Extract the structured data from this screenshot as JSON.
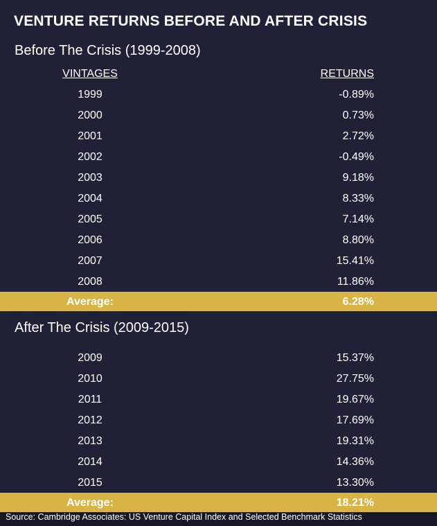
{
  "title": "VENTURE RETURNS BEFORE AND AFTER CRISIS",
  "sections": [
    {
      "heading": "Before The Crisis (1999-2008)",
      "columns": [
        "VINTAGES",
        "RETURNS"
      ],
      "rows": [
        [
          "1999",
          "-0.89%"
        ],
        [
          "2000",
          "0.73%"
        ],
        [
          "2001",
          "2.72%"
        ],
        [
          "2002",
          "-0.49%"
        ],
        [
          "2003",
          "9.18%"
        ],
        [
          "2004",
          "8.33%"
        ],
        [
          "2005",
          "7.14%"
        ],
        [
          "2006",
          "8.80%"
        ],
        [
          "2007",
          "15.41%"
        ],
        [
          "2008",
          "11.86%"
        ]
      ],
      "average": {
        "label": "Average:",
        "value": "6.28%"
      }
    },
    {
      "heading": "After The Crisis (2009-2015)",
      "rows": [
        [
          "2009",
          "15.37%"
        ],
        [
          "2010",
          "27.75%"
        ],
        [
          "2011",
          "19.67%"
        ],
        [
          "2012",
          "17.69%"
        ],
        [
          "2013",
          "19.31%"
        ],
        [
          "2014",
          "14.36%"
        ],
        [
          "2015",
          "13.30%"
        ]
      ],
      "average": {
        "label": "Average:",
        "value": "18.21%"
      }
    }
  ],
  "source": "Source: Cambridge Associates: US Venture Capital Index and Selected Benchmark Statistics"
}
